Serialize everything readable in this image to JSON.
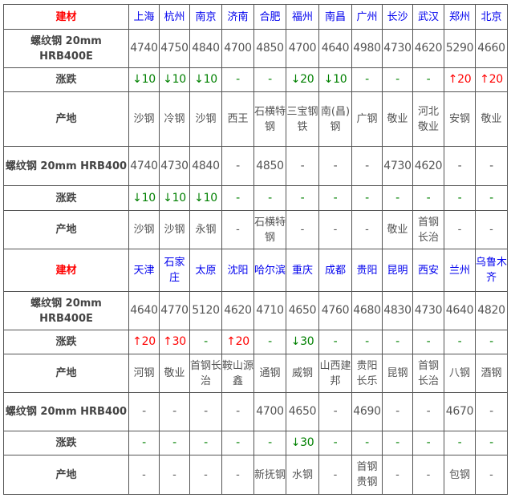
{
  "sections": [
    {
      "header_label": "建材",
      "cities": [
        "上海",
        "杭州",
        "南京",
        "济南",
        "合肥",
        "福州",
        "南昌",
        "广州",
        "长沙",
        "武汉",
        "郑州",
        "北京"
      ],
      "products": [
        {
          "name": "螺纹钢 20mm HRB400E",
          "prices": [
            "4740",
            "4750",
            "4840",
            "4700",
            "4850",
            "4700",
            "4640",
            "4980",
            "4730",
            "4620",
            "5290",
            "4660"
          ],
          "change_label": "涨跌",
          "changes": [
            "↓10",
            "↓10",
            "↓10",
            "-",
            "-",
            "↓20",
            "↓10",
            "-",
            "-",
            "-",
            "↑20",
            "↑20"
          ],
          "origin_label": "产地",
          "origins": [
            "沙钢",
            "冷钢",
            "沙钢",
            "西王",
            "石横特钢",
            "三宝钢铁",
            "南(昌)钢",
            "广钢",
            "敬业",
            "河北敬业",
            "安钢",
            "敬业"
          ]
        },
        {
          "name": "螺纹钢 20mm HRB400",
          "prices": [
            "4740",
            "4730",
            "4840",
            "-",
            "4850",
            "-",
            "-",
            "-",
            "4730",
            "4620",
            "-",
            "-"
          ],
          "change_label": "涨跌",
          "changes": [
            "↓10",
            "↓10",
            "↓10",
            "-",
            "-",
            "-",
            "-",
            "-",
            "-",
            "-",
            "-",
            "-"
          ],
          "origin_label": "产地",
          "origins": [
            "沙钢",
            "沙钢",
            "永钢",
            "-",
            "石横特钢",
            "-",
            "-",
            "-",
            "敬业",
            "首钢长治",
            "-",
            "-"
          ]
        }
      ]
    },
    {
      "header_label": "建材",
      "cities": [
        "天津",
        "石家庄",
        "太原",
        "沈阳",
        "哈尔滨",
        "重庆",
        "成都",
        "贵阳",
        "昆明",
        "西安",
        "兰州",
        "乌鲁木齐"
      ],
      "products": [
        {
          "name": "螺纹钢 20mm HRB400E",
          "prices": [
            "4640",
            "4770",
            "5120",
            "4620",
            "4710",
            "4650",
            "4760",
            "4680",
            "4830",
            "4730",
            "4640",
            "4820"
          ],
          "change_label": "涨跌",
          "changes": [
            "↑20",
            "↑30",
            "-",
            "↑20",
            "-",
            "↓30",
            "-",
            "-",
            "-",
            "-",
            "-",
            "-"
          ],
          "origin_label": "产地",
          "origins": [
            "河钢",
            "敬业",
            "首钢长治",
            "鞍山源鑫",
            "通钢",
            "威钢",
            "山西建邦",
            "贵阳长乐",
            "昆钢",
            "首钢长治",
            "八钢",
            "酒钢"
          ]
        },
        {
          "name": "螺纹钢 20mm HRB400",
          "prices": [
            "-",
            "-",
            "-",
            "-",
            "4700",
            "4650",
            "-",
            "4690",
            "-",
            "-",
            "4670",
            "-"
          ],
          "change_label": "涨跌",
          "changes": [
            "-",
            "-",
            "-",
            "-",
            "-",
            "↓30",
            "-",
            "-",
            "-",
            "-",
            "-",
            "-"
          ],
          "origin_label": "产地",
          "origins": [
            "-",
            "-",
            "-",
            "-",
            "新抚钢",
            "水钢",
            "-",
            "首钢贵钢",
            "-",
            "-",
            "包钢",
            "-"
          ]
        }
      ]
    }
  ],
  "colors": {
    "city": "#0000ee",
    "header": "#ff0000",
    "up": "#ff0000",
    "down": "#008000"
  }
}
